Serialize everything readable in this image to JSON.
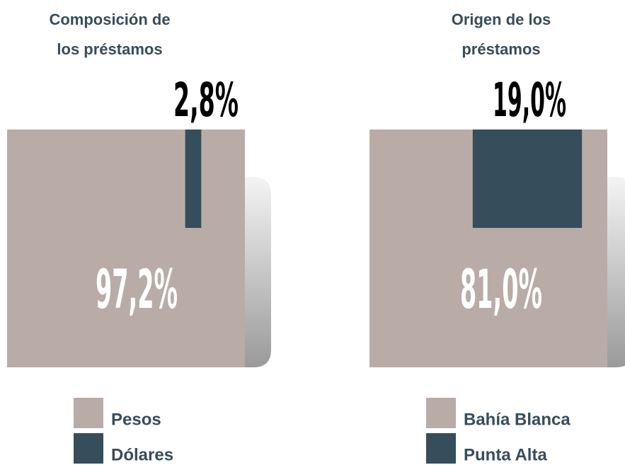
{
  "chart_data": [
    {
      "type": "proportion",
      "title": [
        "Composición de",
        "los préstamos"
      ],
      "categories": [
        "Pesos",
        "Dólares"
      ],
      "values": [
        97.2,
        2.8
      ],
      "value_labels": [
        "97,2%",
        "2,8%"
      ],
      "colors": [
        "#b9aca6",
        "#364d5c"
      ]
    },
    {
      "type": "proportion",
      "title": [
        "Origen de los",
        "préstamos"
      ],
      "categories": [
        "Bahía Blanca",
        "Punta Alta"
      ],
      "values": [
        81.0,
        19.0
      ],
      "value_labels": [
        "81,0%",
        "19,0%"
      ],
      "colors": [
        "#b9aca6",
        "#364d5c"
      ]
    }
  ]
}
